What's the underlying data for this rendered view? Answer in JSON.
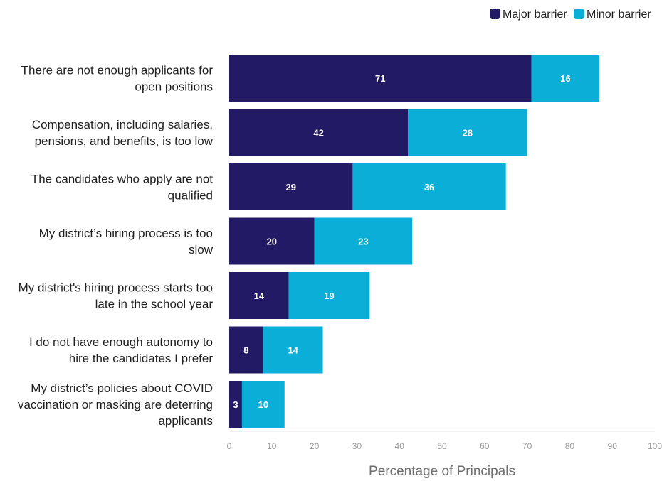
{
  "chart_data": {
    "type": "bar",
    "orientation": "horizontal",
    "stacked": true,
    "categories": [
      [
        "There are not enough applicants for",
        "open positions"
      ],
      [
        "Compensation, including salaries,",
        "pensions, and benefits, is too low"
      ],
      [
        "The candidates who apply are not",
        "qualified"
      ],
      [
        "My district’s hiring process is too",
        "slow"
      ],
      [
        "My district's hiring process starts too",
        "late in the school year"
      ],
      [
        "I do not have enough autonomy to",
        "hire the candidates I prefer"
      ],
      [
        "My district’s policies about COVID",
        "vaccination or masking are deterring",
        "applicants"
      ]
    ],
    "series": [
      {
        "name": "Major barrier",
        "color": "#231a66",
        "values": [
          71,
          42,
          29,
          20,
          14,
          8,
          3
        ]
      },
      {
        "name": "Minor barrier",
        "color": "#0aaed6",
        "values": [
          16,
          28,
          36,
          23,
          19,
          14,
          10
        ]
      }
    ],
    "xlabel": "Percentage of Principals",
    "xlim": [
      0,
      100
    ],
    "xticks": [
      0,
      10,
      20,
      30,
      40,
      50,
      60,
      70,
      80,
      90,
      100
    ],
    "grid": false,
    "legend": "top-right",
    "data_labels": true
  }
}
